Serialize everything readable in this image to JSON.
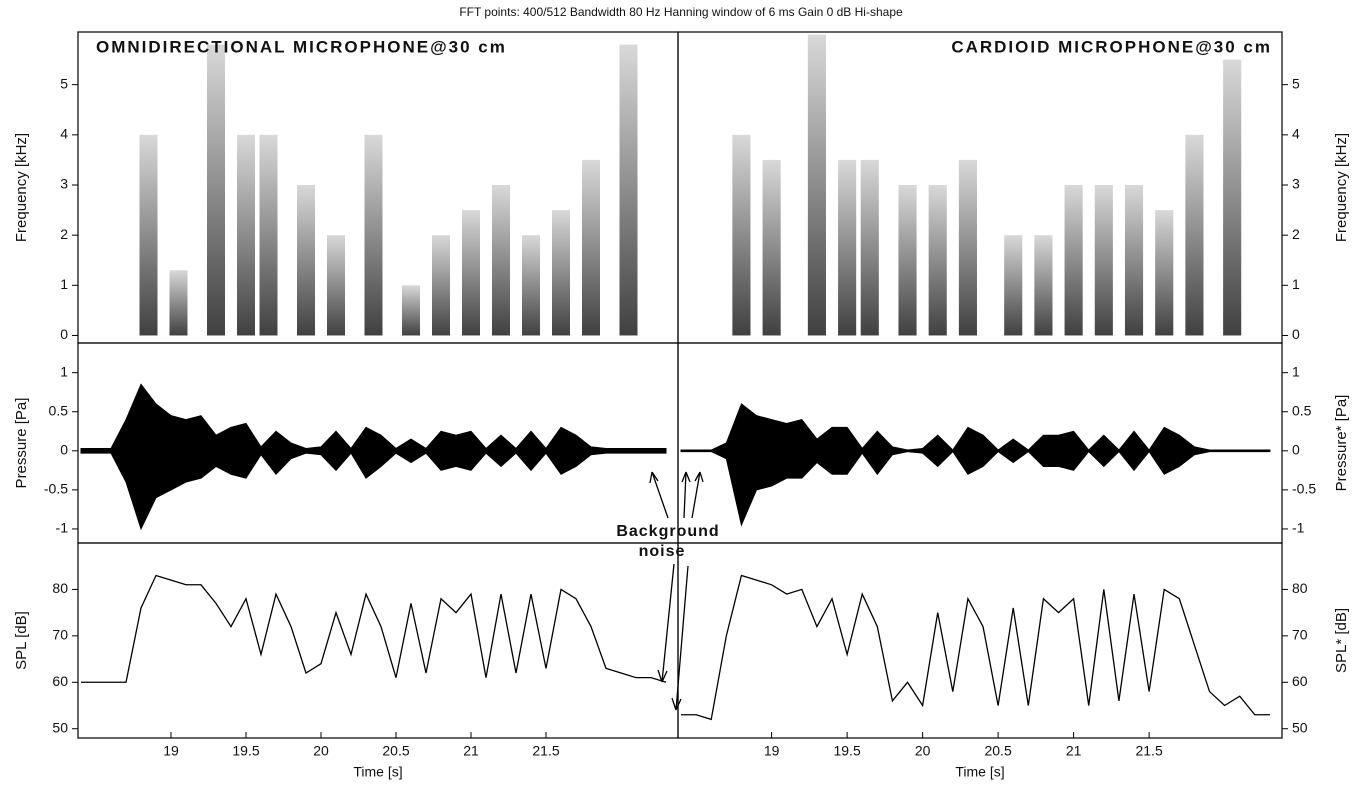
{
  "title": "FFT points: 400/512  Bandwidth 80 Hz  Hanning window of 6 ms  Gain 0 dB  Hi-shape",
  "annotation": [
    "Background",
    "noise"
  ],
  "chart_data": [
    {
      "type": "spectrogram",
      "title": "OMNIDIRECTIONAL MICROPHONE@30 cm",
      "y_label": "Frequency [kHz]",
      "xlim": [
        18.38,
        22.38
      ],
      "ylim": [
        -0.15,
        6.05
      ],
      "yticks": [
        0,
        1,
        2,
        3,
        4,
        5
      ],
      "color": "#222222",
      "x": [
        18.85,
        19.05,
        19.3,
        19.5,
        19.65,
        19.9,
        20.1,
        20.35,
        20.6,
        20.8,
        21.0,
        21.2,
        21.4,
        21.6,
        21.8,
        22.05
      ],
      "values": [
        4,
        1.3,
        5.8,
        4,
        4,
        3,
        2,
        4,
        1,
        2,
        2.5,
        3,
        2,
        2.5,
        3.5,
        5.8
      ]
    },
    {
      "type": "spectrogram",
      "title": "CARDIOID MICROPHONE@30 cm",
      "y_label": "Frequency [kHz]",
      "xlim": [
        18.38,
        22.38
      ],
      "ylim": [
        -0.15,
        6.05
      ],
      "yticks": [
        0,
        1,
        2,
        3,
        4,
        5
      ],
      "color": "#222222",
      "x": [
        18.8,
        19.0,
        19.3,
        19.5,
        19.65,
        19.9,
        20.1,
        20.3,
        20.6,
        20.8,
        21.0,
        21.2,
        21.4,
        21.6,
        21.8,
        22.05
      ],
      "values": [
        4,
        3.5,
        6,
        3.5,
        3.5,
        3,
        3,
        3.5,
        2,
        2,
        3,
        3,
        3,
        2.5,
        4,
        5.5
      ]
    },
    {
      "type": "waveform",
      "y_label": "Pressure [Pa]",
      "xlim": [
        18.38,
        22.38
      ],
      "ylim": [
        -1.18,
        1.38
      ],
      "yticks": [
        1,
        0.5,
        0,
        -0.5,
        -1
      ],
      "x": [
        18.4,
        18.5,
        18.6,
        18.7,
        18.8,
        18.9,
        19.0,
        19.1,
        19.2,
        19.3,
        19.4,
        19.5,
        19.6,
        19.7,
        19.8,
        19.9,
        20.0,
        20.1,
        20.2,
        20.3,
        20.4,
        20.5,
        20.6,
        20.7,
        20.8,
        20.9,
        21.0,
        21.1,
        21.2,
        21.3,
        21.4,
        21.5,
        21.6,
        21.7,
        21.8,
        21.9,
        22.0,
        22.1,
        22.2,
        22.3
      ],
      "series": [
        {
          "color": "#000000",
          "values": [
            0.03,
            0.03,
            0.03,
            0.4,
            0.85,
            0.6,
            0.45,
            0.4,
            0.45,
            0.2,
            0.3,
            0.35,
            0.05,
            0.25,
            0.1,
            0.03,
            0.05,
            0.25,
            0.03,
            0.3,
            0.2,
            0.03,
            0.15,
            0.03,
            0.25,
            0.2,
            0.25,
            0.03,
            0.2,
            0.03,
            0.25,
            0.03,
            0.3,
            0.2,
            0.05,
            0.03,
            0.03,
            0.03,
            0.03,
            0.03
          ]
        },
        {
          "color": "#000000",
          "values": [
            -0.03,
            -0.03,
            -0.03,
            -0.4,
            -1.0,
            -0.6,
            -0.5,
            -0.4,
            -0.35,
            -0.2,
            -0.3,
            -0.35,
            -0.05,
            -0.3,
            -0.1,
            -0.03,
            -0.05,
            -0.25,
            -0.03,
            -0.35,
            -0.2,
            -0.03,
            -0.15,
            -0.03,
            -0.25,
            -0.2,
            -0.25,
            -0.03,
            -0.2,
            -0.03,
            -0.25,
            -0.03,
            -0.3,
            -0.2,
            -0.05,
            -0.03,
            -0.03,
            -0.03,
            -0.03,
            -0.03
          ]
        }
      ]
    },
    {
      "type": "waveform",
      "y_label": "Pressure* [Pa]",
      "xlim": [
        18.38,
        22.38
      ],
      "ylim": [
        -1.18,
        1.38
      ],
      "yticks": [
        1,
        0.5,
        0,
        -0.5,
        -1
      ],
      "x": [
        18.4,
        18.5,
        18.6,
        18.7,
        18.8,
        18.9,
        19.0,
        19.1,
        19.2,
        19.3,
        19.4,
        19.5,
        19.6,
        19.7,
        19.8,
        19.9,
        20.0,
        20.1,
        20.2,
        20.3,
        20.4,
        20.5,
        20.6,
        20.7,
        20.8,
        20.9,
        21.0,
        21.1,
        21.2,
        21.3,
        21.4,
        21.5,
        21.6,
        21.7,
        21.8,
        21.9,
        22.0,
        22.1,
        22.2,
        22.3
      ],
      "series": [
        {
          "color": "#000000",
          "values": [
            0.01,
            0.01,
            0.01,
            0.1,
            0.6,
            0.45,
            0.4,
            0.35,
            0.4,
            0.15,
            0.3,
            0.3,
            0.03,
            0.25,
            0.05,
            0.01,
            0.03,
            0.2,
            0.01,
            0.3,
            0.2,
            0.01,
            0.15,
            0.01,
            0.2,
            0.2,
            0.25,
            0.01,
            0.2,
            0.01,
            0.25,
            0.01,
            0.3,
            0.2,
            0.05,
            0.01,
            0.01,
            0.01,
            0.01,
            0.01
          ]
        },
        {
          "color": "#000000",
          "values": [
            -0.01,
            -0.01,
            -0.01,
            -0.1,
            -0.95,
            -0.5,
            -0.45,
            -0.35,
            -0.35,
            -0.15,
            -0.3,
            -0.3,
            -0.03,
            -0.3,
            -0.05,
            -0.01,
            -0.03,
            -0.2,
            -0.01,
            -0.3,
            -0.2,
            -0.01,
            -0.15,
            -0.01,
            -0.2,
            -0.2,
            -0.25,
            -0.01,
            -0.2,
            -0.01,
            -0.25,
            -0.01,
            -0.3,
            -0.2,
            -0.05,
            -0.01,
            -0.01,
            -0.01,
            -0.01,
            -0.01
          ]
        }
      ]
    },
    {
      "type": "line",
      "y_label": "SPL [dB]",
      "x_label": "Time [s]",
      "xlim": [
        18.38,
        22.38
      ],
      "ylim": [
        48,
        90
      ],
      "yticks": [
        50,
        60,
        70,
        80
      ],
      "xticks": [
        19,
        19.5,
        20,
        20.5,
        21,
        21.5
      ],
      "x": [
        18.4,
        18.5,
        18.6,
        18.7,
        18.8,
        18.9,
        19.0,
        19.1,
        19.2,
        19.3,
        19.4,
        19.5,
        19.6,
        19.7,
        19.8,
        19.9,
        20.0,
        20.1,
        20.2,
        20.3,
        20.4,
        20.5,
        20.6,
        20.7,
        20.8,
        20.9,
        21.0,
        21.1,
        21.2,
        21.3,
        21.4,
        21.5,
        21.6,
        21.7,
        21.8,
        21.9,
        22.0,
        22.1,
        22.2,
        22.3
      ],
      "series": [
        {
          "color": "#000000",
          "values": [
            60,
            60,
            60,
            60,
            76,
            83,
            82,
            81,
            81,
            77,
            72,
            78,
            66,
            79,
            72,
            62,
            64,
            75,
            66,
            79,
            72,
            61,
            77,
            62,
            78,
            75,
            79,
            61,
            79,
            62,
            79,
            63,
            80,
            78,
            72,
            63,
            62,
            61,
            61,
            60
          ]
        }
      ]
    },
    {
      "type": "line",
      "y_label": "SPL* [dB]",
      "x_label": "Time [s]",
      "xlim": [
        18.38,
        22.38
      ],
      "ylim": [
        48,
        90
      ],
      "yticks": [
        50,
        60,
        70,
        80
      ],
      "xticks": [
        19,
        19.5,
        20,
        20.5,
        21,
        21.5
      ],
      "x": [
        18.4,
        18.5,
        18.6,
        18.7,
        18.8,
        18.9,
        19.0,
        19.1,
        19.2,
        19.3,
        19.4,
        19.5,
        19.6,
        19.7,
        19.8,
        19.9,
        20.0,
        20.1,
        20.2,
        20.3,
        20.4,
        20.5,
        20.6,
        20.7,
        20.8,
        20.9,
        21.0,
        21.1,
        21.2,
        21.3,
        21.4,
        21.5,
        21.6,
        21.7,
        21.8,
        21.9,
        22.0,
        22.1,
        22.2,
        22.3
      ],
      "series": [
        {
          "color": "#000000",
          "values": [
            53,
            53,
            52,
            70,
            83,
            82,
            81,
            79,
            80,
            72,
            78,
            66,
            79,
            72,
            56,
            60,
            55,
            75,
            58,
            78,
            72,
            55,
            76,
            55,
            78,
            75,
            78,
            55,
            80,
            56,
            79,
            58,
            80,
            78,
            68,
            58,
            55,
            57,
            53,
            53
          ]
        }
      ]
    }
  ]
}
